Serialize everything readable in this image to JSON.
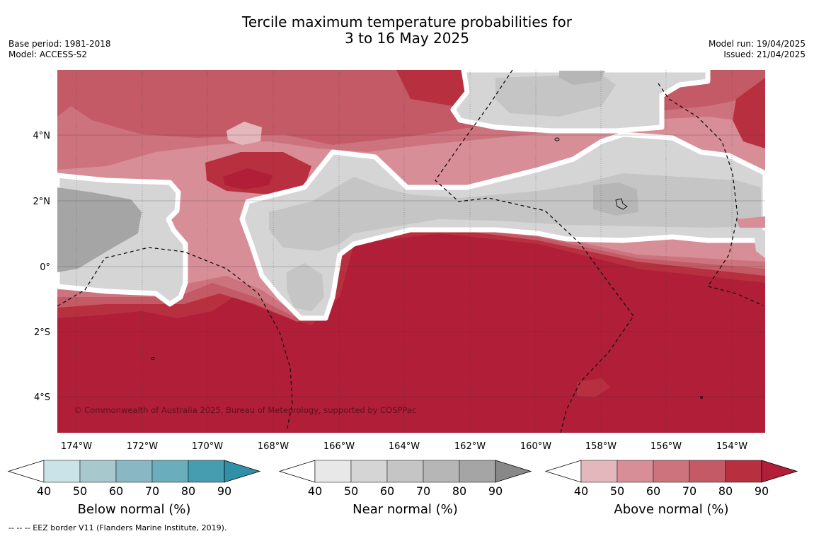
{
  "title_line1": "Tercile maximum temperature probabilities for",
  "title_line2": "3 to 16 May 2025",
  "base_period": "Base period: 1981-2018",
  "model": "Model: ACCESS-S2",
  "model_run": "Model run: 19/04/2025",
  "issued": "Issued: 21/04/2025",
  "copyright": "© Commonwealth of Australia 2025, Bureau of Meteorology, supported by COSPPac",
  "footnote": "--  --  -- EEZ border V11 (Flanders Marine Institute, 2019).",
  "lon_labels": [
    "174°W",
    "172°W",
    "170°W",
    "168°W",
    "166°W",
    "164°W",
    "162°W",
    "160°W",
    "158°W",
    "156°W",
    "154°W"
  ],
  "lat_labels": [
    "4°N",
    "2°N",
    "0°",
    "2°S",
    "4°S"
  ],
  "colorbars": [
    {
      "label": "Below normal (%)",
      "ticks": [
        "40",
        "50",
        "60",
        "70",
        "80",
        "90"
      ],
      "colors": [
        "#c9e3e8",
        "#a7c8cd",
        "#89b8c4",
        "#6aaebd",
        "#469db0",
        "#3190a7"
      ]
    },
    {
      "label": "Near normal (%)",
      "ticks": [
        "40",
        "50",
        "60",
        "70",
        "80",
        "90"
      ],
      "colors": [
        "#e8e8e8",
        "#d5d5d5",
        "#c5c5c5",
        "#b6b6b6",
        "#a5a5a5",
        "#888888"
      ]
    },
    {
      "label": "Above normal (%)",
      "ticks": [
        "40",
        "50",
        "60",
        "70",
        "80",
        "90"
      ],
      "colors": [
        "#e4b7bc",
        "#d88e97",
        "#cd737e",
        "#c55a67",
        "#b8303f",
        "#b01e38"
      ]
    }
  ]
}
